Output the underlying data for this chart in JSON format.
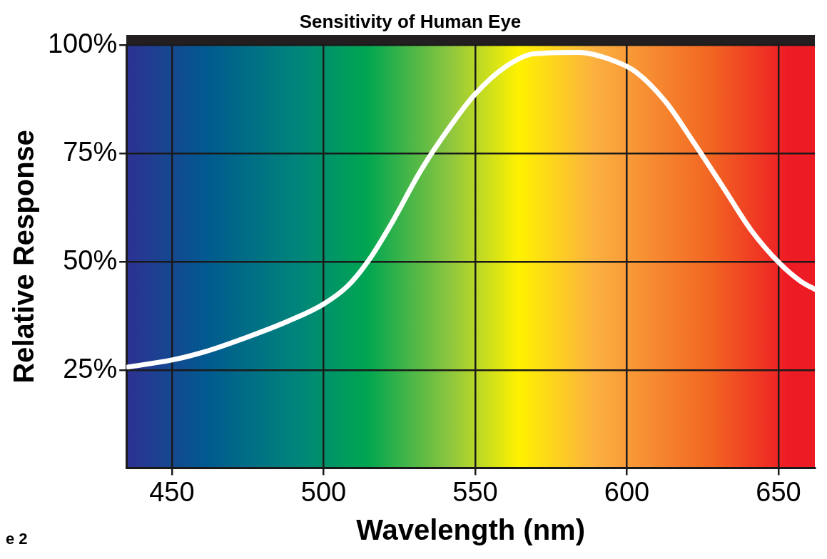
{
  "chart_data": {
    "type": "line",
    "title": "Sensitivity of Human Eye",
    "xlabel": "Wavelength (nm)",
    "ylabel": "Relative Response",
    "annotations": [
      "e 2"
    ],
    "series": [
      {
        "color": "#ffffff",
        "x": [
          435.6,
          450,
          460.4,
          474.6,
          488.8,
          500,
          508,
          515,
          522.5,
          532,
          541.5,
          550,
          560,
          569.5,
          584,
          596,
          603,
          612.7,
          622,
          631.6,
          641,
          650.5,
          657.6,
          662
        ],
        "values": [
          25.8,
          27.4,
          29.2,
          32.6,
          36.5,
          40.3,
          44.5,
          50.5,
          59,
          71,
          81,
          88.7,
          95,
          98,
          98.3,
          96.3,
          93.8,
          87,
          77.6,
          67.4,
          57.3,
          49.6,
          45.4,
          43.7
        ]
      }
    ],
    "xlim": [
      435,
      662
    ],
    "xticks": [
      450,
      500,
      550,
      600,
      650
    ],
    "ylim": [
      2.5,
      100
    ],
    "yticks": [
      {
        "value": 25,
        "label": "25%"
      },
      {
        "value": 50,
        "label": "50%"
      },
      {
        "value": 75,
        "label": "75%"
      },
      {
        "value": 100,
        "label": "100%"
      }
    ],
    "grid": true,
    "legend": false,
    "marker": "none",
    "line_style": "solid"
  }
}
